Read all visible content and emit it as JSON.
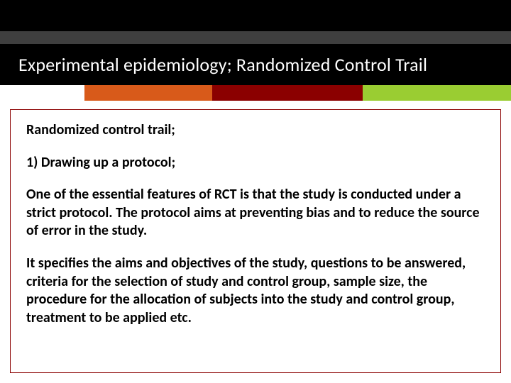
{
  "header": {
    "top_black_color": "#000000",
    "gray_bar_color": "#3f3f3f",
    "title_bar_color": "#000000",
    "title_text_color": "#ffffff",
    "title": "Experimental epidemiology; Randomized Control Trail",
    "title_fontsize": 26,
    "accent_segments": [
      {
        "width_pct": 16.5,
        "color": "#ffffff"
      },
      {
        "width_pct": 25.0,
        "color": "#d85a1a"
      },
      {
        "width_pct": 29.5,
        "color": "#8b0000"
      },
      {
        "width_pct": 29.0,
        "color": "#9acd32"
      }
    ]
  },
  "content": {
    "border_color": "#8b0000",
    "text_color": "#000000",
    "fontsize": 20,
    "fontweight": 600,
    "paragraphs": {
      "p1": "Randomized control trail;",
      "p2": "1) Drawing up a protocol;",
      "p3": "One of the essential features of RCT is that the study is conducted under a strict protocol. The protocol aims at preventing bias and to reduce the source of error in the study.",
      "p4": "It specifies the aims and objectives of the study, questions to be answered, criteria for the selection of study and control group, sample size, the procedure for the allocation of subjects into the study and control group, treatment to be applied etc."
    }
  },
  "background_color": "#ffffff"
}
